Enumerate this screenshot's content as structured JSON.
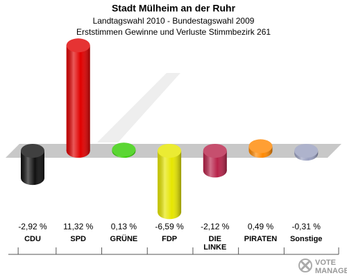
{
  "chart_data": {
    "type": "bar",
    "title": "Stadt Mülheim an der Ruhr",
    "subtitle": [
      "Landtagswahl 2010 - Bundestagswahl 2009",
      "Erststimmen Gewinne und Verluste Stimmbezirk 261"
    ],
    "categories": [
      "CDU",
      "SPD",
      "GRÜNE",
      "FDP",
      "DIE LINKE",
      "PIRATEN",
      "Sonstige"
    ],
    "values": [
      -2.92,
      11.32,
      0.13,
      -6.59,
      -2.12,
      0.49,
      -0.31
    ],
    "value_labels": [
      "-2,92 %",
      "11,32 %",
      "0,13 %",
      "-6,59 %",
      "-2,12 %",
      "0,49 %",
      "-0,31 %"
    ],
    "colors": [
      "#111111",
      "#e00000",
      "#33cc00",
      "#e6e600",
      "#b8234a",
      "#ff8800",
      "#9aa0c0"
    ],
    "logo": [
      "VOTE",
      "MANAGER"
    ]
  }
}
